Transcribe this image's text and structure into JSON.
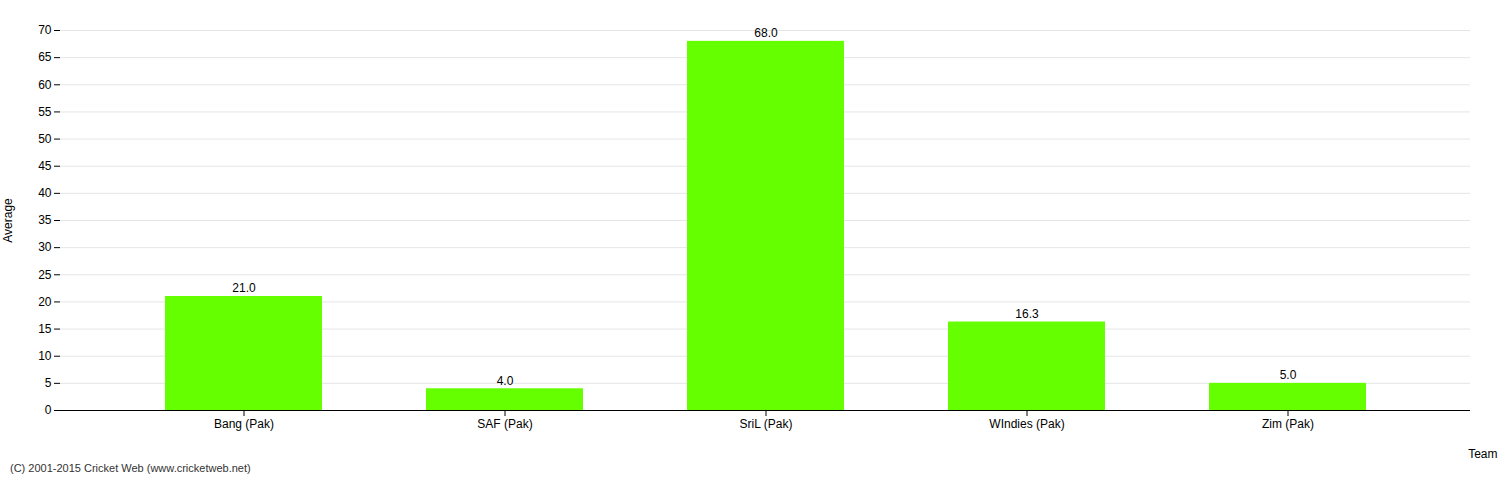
{
  "chart_data": {
    "type": "bar",
    "categories": [
      "Bang (Pak)",
      "SAF (Pak)",
      "SriL (Pak)",
      "WIndies (Pak)",
      "Zim (Pak)"
    ],
    "values": [
      21.0,
      4.0,
      68.0,
      16.3,
      5.0
    ],
    "value_labels": [
      "21.0",
      "4.0",
      "68.0",
      "16.3",
      "5.0"
    ],
    "data_labels": true,
    "color": "#66ff00",
    "xlabel": "Team",
    "ylabel": "Average",
    "ylim": [
      0,
      70
    ],
    "yticks": [
      0,
      5,
      10,
      15,
      20,
      25,
      30,
      35,
      40,
      45,
      50,
      55,
      60,
      65,
      70
    ],
    "grid": true,
    "annotations": [
      "(C) 2001-2015 Cricket Web (www.cricketweb.net)"
    ]
  }
}
